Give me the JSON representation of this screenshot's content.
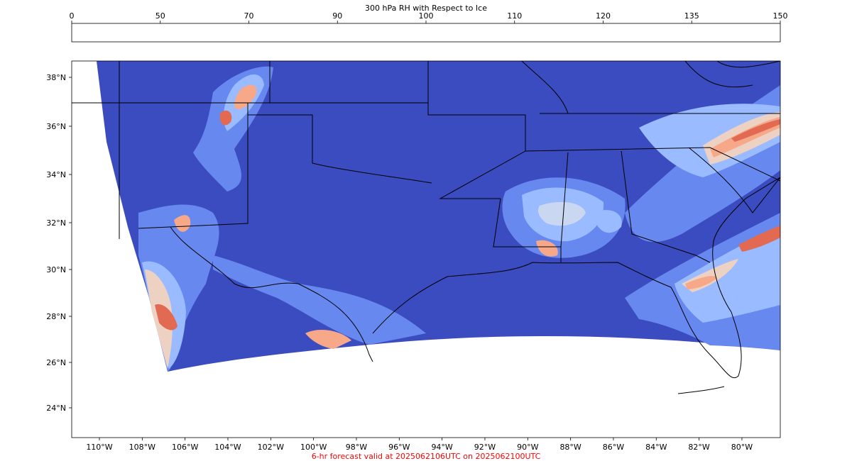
{
  "colorbar": {
    "title": "300 hPa RH with Respect to Ice",
    "ticks": [
      "0",
      "50",
      "70",
      "90",
      "100",
      "110",
      "120",
      "135",
      "150"
    ],
    "colors": [
      "#3b4cc0",
      "#6788ee",
      "#9abbff",
      "#c9d7f0",
      "#edd1c2",
      "#f7a889",
      "#e26952",
      "#b40426"
    ]
  },
  "map": {
    "background_color": "#3b4cc0",
    "lat_labels": [
      "38°N",
      "36°N",
      "34°N",
      "32°N",
      "30°N",
      "28°N",
      "26°N",
      "24°N"
    ],
    "lon_labels": [
      "110°W",
      "108°W",
      "106°W",
      "104°W",
      "102°W",
      "100°W",
      "98°W",
      "96°W",
      "94°W",
      "92°W",
      "90°W",
      "88°W",
      "86°W",
      "84°W",
      "82°W",
      "80°W"
    ]
  },
  "caption": {
    "text": "6-hr forecast valid at 2025062106UTC on 2025062100UTC",
    "color": "#ff0000"
  }
}
